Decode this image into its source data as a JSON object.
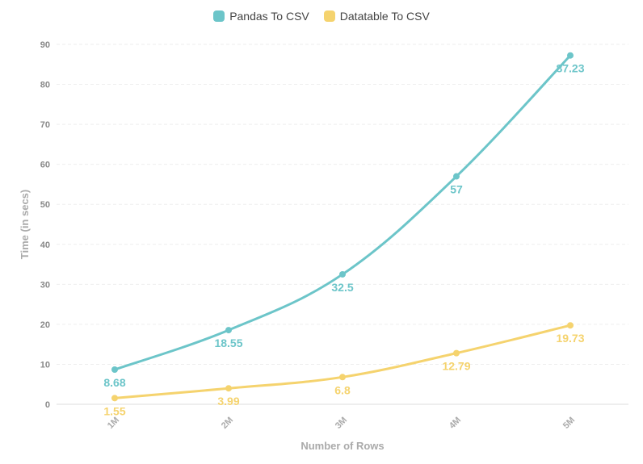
{
  "chart_data": {
    "type": "line",
    "title": "",
    "xlabel": "Number of Rows",
    "ylabel": "Time (in secs)",
    "categories": [
      "1M",
      "2M",
      "3M",
      "4M",
      "5M"
    ],
    "ylim": [
      0,
      90
    ],
    "yticks": [
      0,
      10,
      20,
      30,
      40,
      50,
      60,
      70,
      80,
      90
    ],
    "grid": true,
    "legend_position": "top-center",
    "series": [
      {
        "name": "Pandas To CSV",
        "color": "#6cc5c9",
        "values": [
          8.68,
          18.55,
          32.5,
          57,
          87.23
        ],
        "labels": [
          "8.68",
          "18.55",
          "32.5",
          "57",
          "87.23"
        ]
      },
      {
        "name": "Datatable To CSV",
        "color": "#f5d36e",
        "values": [
          1.55,
          3.99,
          6.8,
          12.79,
          19.73
        ],
        "labels": [
          "1.55",
          "3.99",
          "6.8",
          "12.79",
          "19.73"
        ]
      }
    ]
  }
}
